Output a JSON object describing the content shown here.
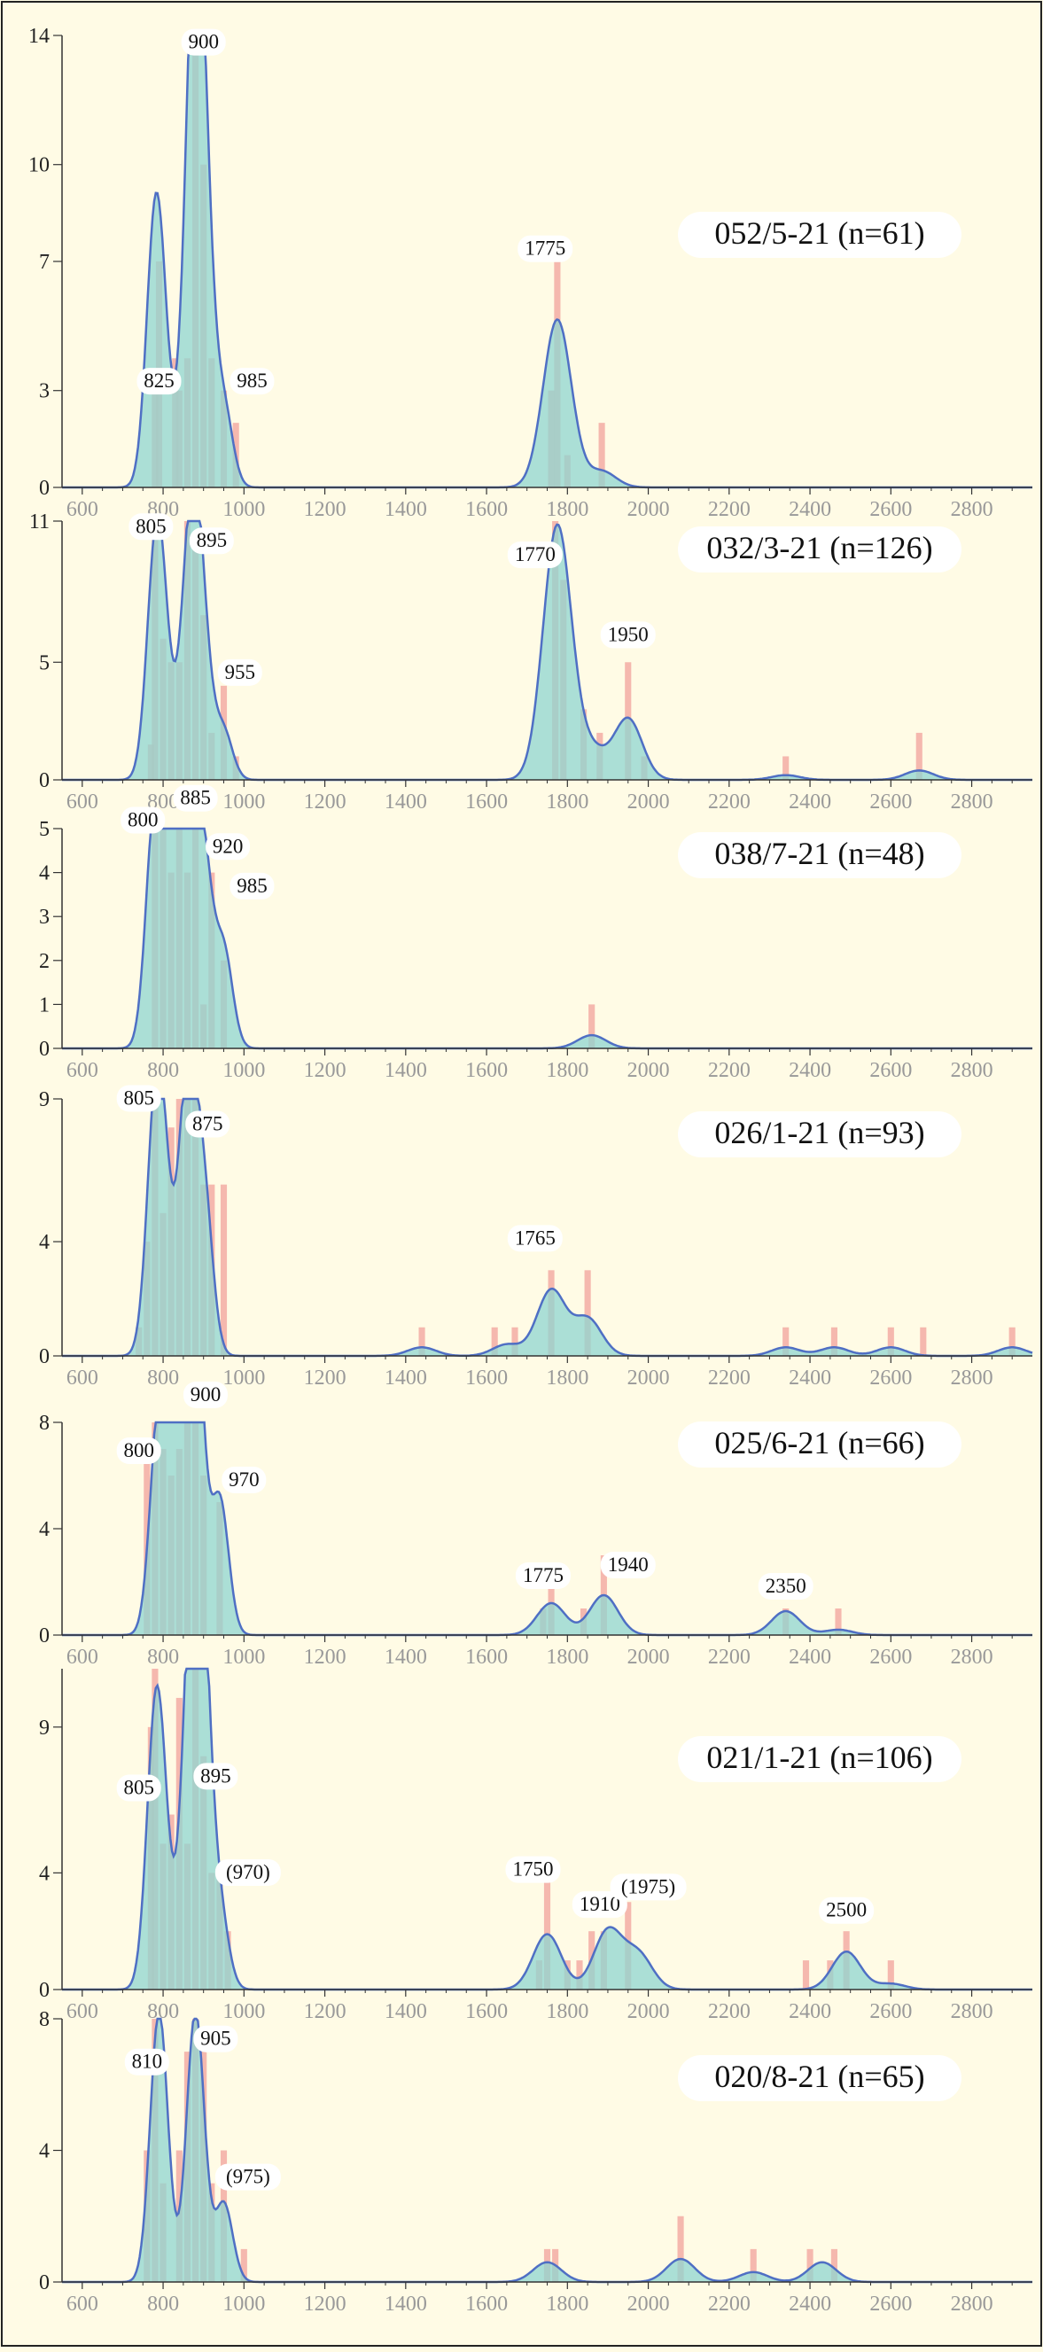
{
  "colors": {
    "background": "#fffbe5",
    "histogram_bar": "#f2a8a0",
    "density_fill": "#8fd6d0",
    "density_line": "#4f6fc4",
    "axis": "#333333",
    "tick_label": "#999999",
    "border": "#222222"
  },
  "x_axis": {
    "min": 550,
    "max": 2950,
    "ticks": [
      600,
      800,
      1000,
      1200,
      1400,
      1600,
      1800,
      2000,
      2200,
      2400,
      2600,
      2800
    ],
    "tick_labels": [
      "600",
      "800",
      "1000",
      "1200",
      "1400",
      "1600",
      "1800",
      "2000",
      "2200",
      "2400",
      "2600",
      "2800"
    ]
  },
  "chart_data": [
    {
      "type": "bar",
      "title": "052/5-21 (n=61)",
      "ylim": [
        0,
        14
      ],
      "yticks": [
        0,
        3,
        7,
        10,
        14
      ],
      "ytick_labels": [
        "0",
        "3",
        "7",
        "10",
        "14"
      ],
      "bars": [
        [
          780,
          3
        ],
        [
          790,
          7
        ],
        [
          830,
          4
        ],
        [
          840,
          3
        ],
        [
          860,
          4
        ],
        [
          880,
          14
        ],
        [
          900,
          10
        ],
        [
          920,
          4
        ],
        [
          950,
          3
        ],
        [
          980,
          2
        ],
        [
          1760,
          3
        ],
        [
          1775,
          7
        ],
        [
          1800,
          1
        ],
        [
          1885,
          2
        ]
      ],
      "peaks": [
        [
          780,
          7.5
        ],
        [
          800,
          2.3
        ],
        [
          860,
          2.4
        ],
        [
          880,
          14
        ],
        [
          905,
          5.5
        ],
        [
          950,
          2.4
        ],
        [
          1775,
          5.2
        ],
        [
          1885,
          0.5
        ]
      ],
      "labels": [
        {
          "text": "900",
          "x": 900,
          "y": 13.6
        },
        {
          "text": "825",
          "x": 790,
          "y": 3.1
        },
        {
          "text": "985",
          "x": 1020,
          "y": 3.1
        },
        {
          "text": "1775",
          "x": 1745,
          "y": 7.2
        }
      ]
    },
    {
      "type": "bar",
      "title": "032/3-21 (n=126)",
      "ylim": [
        0,
        11
      ],
      "yticks": [
        0,
        5,
        11
      ],
      "ytick_labels": [
        "0",
        "5",
        "11"
      ],
      "bars": [
        [
          770,
          1.5
        ],
        [
          780,
          11
        ],
        [
          800,
          6
        ],
        [
          820,
          5
        ],
        [
          840,
          5
        ],
        [
          860,
          11
        ],
        [
          880,
          10
        ],
        [
          900,
          7
        ],
        [
          920,
          2
        ],
        [
          950,
          4
        ],
        [
          980,
          1
        ],
        [
          1770,
          11
        ],
        [
          1790,
          8.5
        ],
        [
          1840,
          3
        ],
        [
          1880,
          2
        ],
        [
          1950,
          5
        ],
        [
          1990,
          1
        ],
        [
          2340,
          1
        ],
        [
          2670,
          2
        ]
      ],
      "peaks": [
        [
          780,
          8
        ],
        [
          800,
          4.3
        ],
        [
          860,
          5.4
        ],
        [
          880,
          8
        ],
        [
          905,
          2.8
        ],
        [
          950,
          2
        ],
        [
          1775,
          10.8
        ],
        [
          1860,
          1.2
        ],
        [
          1950,
          2.6
        ],
        [
          2340,
          0.2
        ],
        [
          2670,
          0.4
        ]
      ],
      "labels": [
        {
          "text": "805",
          "x": 770,
          "y": 10.5
        },
        {
          "text": "895",
          "x": 920,
          "y": 9.9
        },
        {
          "text": "955",
          "x": 990,
          "y": 4.3
        },
        {
          "text": "1770",
          "x": 1720,
          "y": 9.3
        },
        {
          "text": "1950",
          "x": 1950,
          "y": 5.9
        }
      ]
    },
    {
      "type": "bar",
      "title": "038/7-21 (n=48)",
      "ylim": [
        0,
        5
      ],
      "yticks": [
        0,
        1,
        2,
        3,
        4,
        5
      ],
      "ytick_labels": [
        "0",
        "1",
        "2",
        "3",
        "4",
        "5"
      ],
      "bars": [
        [
          780,
          5
        ],
        [
          800,
          5
        ],
        [
          820,
          4
        ],
        [
          840,
          5
        ],
        [
          860,
          4
        ],
        [
          880,
          5
        ],
        [
          900,
          1
        ],
        [
          920,
          4
        ],
        [
          950,
          2
        ],
        [
          1860,
          1
        ]
      ],
      "peaks": [
        [
          780,
          5.5
        ],
        [
          830,
          4.2
        ],
        [
          860,
          5.5
        ],
        [
          900,
          4
        ],
        [
          950,
          2.2
        ],
        [
          1860,
          0.3
        ]
      ],
      "labels": [
        {
          "text": "885",
          "x": 880,
          "y": 5.55
        },
        {
          "text": "800",
          "x": 750,
          "y": 5.05
        },
        {
          "text": "920",
          "x": 960,
          "y": 4.45
        },
        {
          "text": "985",
          "x": 1020,
          "y": 3.55
        }
      ]
    },
    {
      "type": "bar",
      "title": "026/1-21 (n=93)",
      "ylim": [
        0,
        9
      ],
      "yticks": [
        0,
        4,
        9
      ],
      "ytick_labels": [
        "0",
        "4",
        "9"
      ],
      "bars": [
        [
          740,
          1
        ],
        [
          760,
          4
        ],
        [
          780,
          9
        ],
        [
          800,
          5
        ],
        [
          820,
          8
        ],
        [
          840,
          9
        ],
        [
          860,
          9
        ],
        [
          880,
          9
        ],
        [
          900,
          6
        ],
        [
          920,
          6
        ],
        [
          950,
          6
        ],
        [
          1440,
          1
        ],
        [
          1620,
          1
        ],
        [
          1670,
          1
        ],
        [
          1760,
          3
        ],
        [
          1850,
          3
        ],
        [
          2340,
          1
        ],
        [
          2460,
          1
        ],
        [
          2600,
          1
        ],
        [
          2680,
          1
        ],
        [
          2900,
          1
        ]
      ],
      "peaks": [
        [
          780,
          7
        ],
        [
          800,
          4.6
        ],
        [
          860,
          9.6
        ],
        [
          900,
          5.5
        ],
        [
          1440,
          0.3
        ],
        [
          1650,
          0.4
        ],
        [
          1760,
          2.3
        ],
        [
          1850,
          1.3
        ],
        [
          2340,
          0.3
        ],
        [
          2460,
          0.3
        ],
        [
          2600,
          0.3
        ],
        [
          2900,
          0.3
        ]
      ],
      "labels": [
        {
          "text": "805",
          "x": 740,
          "y": 8.8
        },
        {
          "text": "875",
          "x": 910,
          "y": 7.9
        },
        {
          "text": "1765",
          "x": 1720,
          "y": 3.9
        }
      ]
    },
    {
      "type": "bar",
      "title": "025/6-21 (n=66)",
      "ylim": [
        0,
        8
      ],
      "yticks": [
        0,
        4,
        8
      ],
      "ytick_labels": [
        "0",
        "4",
        "8"
      ],
      "bars": [
        [
          760,
          7
        ],
        [
          780,
          8
        ],
        [
          800,
          7
        ],
        [
          820,
          6
        ],
        [
          840,
          7
        ],
        [
          860,
          8
        ],
        [
          880,
          8
        ],
        [
          900,
          6
        ],
        [
          940,
          5
        ],
        [
          1740,
          1
        ],
        [
          1760,
          2
        ],
        [
          1840,
          1
        ],
        [
          1890,
          3
        ],
        [
          2340,
          1
        ],
        [
          2470,
          1
        ]
      ],
      "peaks": [
        [
          790,
          8
        ],
        [
          820,
          4
        ],
        [
          860,
          7.7
        ],
        [
          880,
          9.3
        ],
        [
          940,
          5.1
        ],
        [
          1760,
          1.2
        ],
        [
          1890,
          1.5
        ],
        [
          2340,
          0.9
        ],
        [
          2470,
          0.2
        ]
      ],
      "labels": [
        {
          "text": "900",
          "x": 905,
          "y": 8.8
        },
        {
          "text": "800",
          "x": 740,
          "y": 6.7
        },
        {
          "text": "970",
          "x": 1000,
          "y": 5.6
        },
        {
          "text": "1775",
          "x": 1740,
          "y": 2.0
        },
        {
          "text": "1940",
          "x": 1950,
          "y": 2.4
        },
        {
          "text": "2350",
          "x": 2340,
          "y": 1.6
        }
      ]
    },
    {
      "type": "bar",
      "title": "021/1-21 (n=106)",
      "ylim": [
        0,
        11
      ],
      "yticks": [
        0,
        4,
        9
      ],
      "ytick_labels": [
        "0",
        "4",
        "9"
      ],
      "bars": [
        [
          770,
          9
        ],
        [
          780,
          11
        ],
        [
          800,
          5
        ],
        [
          820,
          6
        ],
        [
          840,
          10
        ],
        [
          860,
          5
        ],
        [
          880,
          11
        ],
        [
          900,
          8
        ],
        [
          920,
          4
        ],
        [
          940,
          4
        ],
        [
          960,
          2
        ],
        [
          1730,
          1
        ],
        [
          1750,
          4
        ],
        [
          1800,
          1
        ],
        [
          1830,
          1
        ],
        [
          1860,
          2
        ],
        [
          1890,
          2
        ],
        [
          1950,
          3
        ],
        [
          2390,
          1
        ],
        [
          2450,
          1
        ],
        [
          2490,
          2
        ],
        [
          2600,
          1
        ]
      ],
      "peaks": [
        [
          780,
          8
        ],
        [
          800,
          3.3
        ],
        [
          860,
          5
        ],
        [
          880,
          10
        ],
        [
          900,
          7.2
        ],
        [
          940,
          2.5
        ],
        [
          1750,
          1.9
        ],
        [
          1900,
          2
        ],
        [
          1975,
          1.2
        ],
        [
          2490,
          1.3
        ],
        [
          2600,
          0.2
        ]
      ],
      "labels": [
        {
          "text": "805",
          "x": 740,
          "y": 6.7
        },
        {
          "text": "895",
          "x": 930,
          "y": 7.1
        },
        {
          "text": "(970)",
          "x": 1010,
          "y": 3.8
        },
        {
          "text": "1750",
          "x": 1715,
          "y": 3.9
        },
        {
          "text": "1910",
          "x": 1880,
          "y": 2.7
        },
        {
          "text": "(1975)",
          "x": 2000,
          "y": 3.3
        },
        {
          "text": "2500",
          "x": 2490,
          "y": 2.5
        }
      ]
    },
    {
      "type": "bar",
      "title": "020/8-21 (n=65)",
      "ylim": [
        0,
        8
      ],
      "yticks": [
        0,
        4,
        8
      ],
      "ytick_labels": [
        "0",
        "4",
        "8"
      ],
      "bars": [
        [
          760,
          4
        ],
        [
          780,
          8
        ],
        [
          800,
          3
        ],
        [
          840,
          4
        ],
        [
          860,
          7
        ],
        [
          880,
          8
        ],
        [
          900,
          7
        ],
        [
          920,
          3
        ],
        [
          950,
          4
        ],
        [
          1000,
          1
        ],
        [
          1750,
          1
        ],
        [
          1770,
          1
        ],
        [
          2080,
          2
        ],
        [
          2260,
          1
        ],
        [
          2400,
          1
        ],
        [
          2460,
          1
        ]
      ],
      "peaks": [
        [
          790,
          8.2
        ],
        [
          880,
          8.2
        ],
        [
          950,
          2.4
        ],
        [
          1750,
          0.6
        ],
        [
          2080,
          0.7
        ],
        [
          2260,
          0.3
        ],
        [
          2430,
          0.6
        ]
      ],
      "labels": [
        {
          "text": "810",
          "x": 760,
          "y": 6.5
        },
        {
          "text": "905",
          "x": 930,
          "y": 7.2
        },
        {
          "text": "(975)",
          "x": 1010,
          "y": 3.0
        }
      ]
    }
  ]
}
